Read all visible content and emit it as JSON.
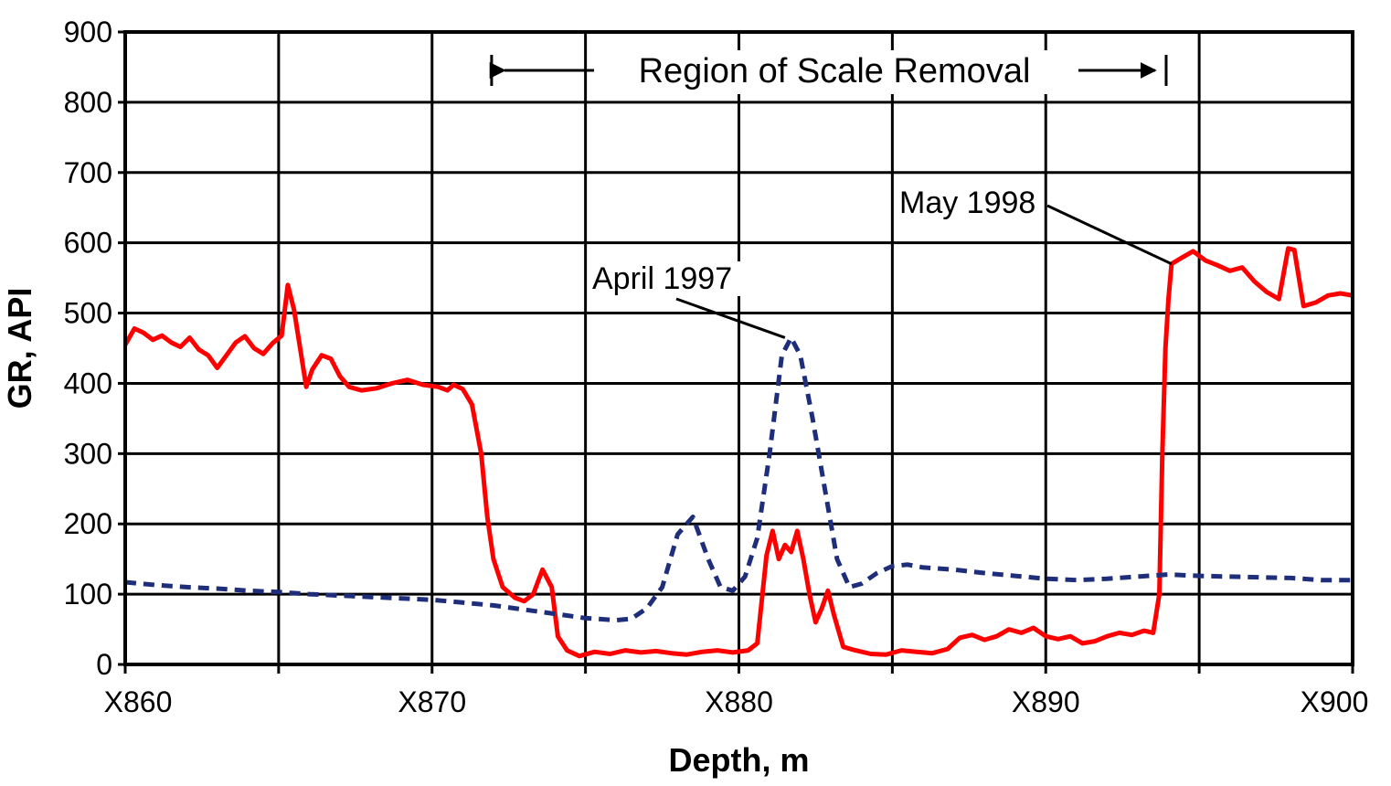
{
  "chart_data": {
    "type": "line",
    "title": "",
    "xlabel": "Depth, m",
    "ylabel": "GR, API",
    "xlim": [
      860,
      900
    ],
    "ylim": [
      0,
      900
    ],
    "grid": true,
    "x_ticks": [
      860,
      865,
      870,
      875,
      880,
      885,
      890,
      895,
      900
    ],
    "x_tick_labels": [
      {
        "value": 860,
        "label": "X860"
      },
      {
        "value": 870,
        "label": "X870"
      },
      {
        "value": 880,
        "label": "X880"
      },
      {
        "value": 890,
        "label": "X890"
      },
      {
        "value": 900,
        "label": "X900"
      }
    ],
    "y_ticks": [
      0,
      100,
      200,
      300,
      400,
      500,
      600,
      700,
      800,
      900
    ],
    "region": {
      "label": "Region of Scale Removal",
      "x_start": 872,
      "x_end": 894.4
    },
    "annotations": [
      {
        "text": "April 1997",
        "series": "April 1997",
        "point_x": 881.5,
        "point_y": 465
      },
      {
        "text": "May 1998",
        "series": "May 1998",
        "point_x": 894.1,
        "point_y": 570
      }
    ],
    "series": [
      {
        "name": "May 1998",
        "color": "#ff0000",
        "style": "solid",
        "points": [
          [
            860,
            455
          ],
          [
            860.3,
            478
          ],
          [
            860.6,
            472
          ],
          [
            860.9,
            462
          ],
          [
            861.2,
            468
          ],
          [
            861.5,
            458
          ],
          [
            861.8,
            452
          ],
          [
            862.1,
            465
          ],
          [
            862.4,
            448
          ],
          [
            862.7,
            440
          ],
          [
            863,
            422
          ],
          [
            863.3,
            440
          ],
          [
            863.6,
            458
          ],
          [
            863.9,
            467
          ],
          [
            864.2,
            450
          ],
          [
            864.5,
            442
          ],
          [
            864.8,
            457
          ],
          [
            865.1,
            468
          ],
          [
            865.3,
            540
          ],
          [
            865.5,
            505
          ],
          [
            865.7,
            450
          ],
          [
            865.9,
            395
          ],
          [
            866.1,
            420
          ],
          [
            866.4,
            440
          ],
          [
            866.7,
            435
          ],
          [
            867,
            410
          ],
          [
            867.3,
            395
          ],
          [
            867.7,
            390
          ],
          [
            868.2,
            393
          ],
          [
            868.7,
            400
          ],
          [
            869.2,
            405
          ],
          [
            869.7,
            398
          ],
          [
            870.2,
            395
          ],
          [
            870.5,
            390
          ],
          [
            870.7,
            398
          ],
          [
            871,
            392
          ],
          [
            871.3,
            370
          ],
          [
            871.6,
            300
          ],
          [
            871.8,
            210
          ],
          [
            872,
            150
          ],
          [
            872.3,
            110
          ],
          [
            872.7,
            95
          ],
          [
            873,
            90
          ],
          [
            873.3,
            100
          ],
          [
            873.6,
            135
          ],
          [
            873.9,
            110
          ],
          [
            874.1,
            40
          ],
          [
            874.4,
            20
          ],
          [
            874.8,
            12
          ],
          [
            875.3,
            18
          ],
          [
            875.8,
            15
          ],
          [
            876.3,
            20
          ],
          [
            876.8,
            17
          ],
          [
            877.3,
            19
          ],
          [
            877.8,
            16
          ],
          [
            878.3,
            14
          ],
          [
            878.8,
            18
          ],
          [
            879.3,
            20
          ],
          [
            879.8,
            17
          ],
          [
            880.3,
            20
          ],
          [
            880.6,
            30
          ],
          [
            880.9,
            155
          ],
          [
            881.1,
            190
          ],
          [
            881.3,
            150
          ],
          [
            881.5,
            170
          ],
          [
            881.7,
            160
          ],
          [
            881.9,
            190
          ],
          [
            882.1,
            150
          ],
          [
            882.3,
            100
          ],
          [
            882.5,
            60
          ],
          [
            882.7,
            80
          ],
          [
            882.9,
            105
          ],
          [
            883.1,
            70
          ],
          [
            883.4,
            25
          ],
          [
            883.8,
            20
          ],
          [
            884.3,
            15
          ],
          [
            884.8,
            14
          ],
          [
            885.3,
            20
          ],
          [
            885.8,
            18
          ],
          [
            886.3,
            16
          ],
          [
            886.8,
            22
          ],
          [
            887.2,
            38
          ],
          [
            887.6,
            42
          ],
          [
            888,
            35
          ],
          [
            888.4,
            40
          ],
          [
            888.8,
            50
          ],
          [
            889.2,
            45
          ],
          [
            889.6,
            52
          ],
          [
            890,
            40
          ],
          [
            890.4,
            36
          ],
          [
            890.8,
            40
          ],
          [
            891.2,
            30
          ],
          [
            891.6,
            33
          ],
          [
            892,
            40
          ],
          [
            892.4,
            45
          ],
          [
            892.8,
            42
          ],
          [
            893.2,
            48
          ],
          [
            893.5,
            45
          ],
          [
            893.7,
            100
          ],
          [
            893.8,
            300
          ],
          [
            893.9,
            450
          ],
          [
            894,
            520
          ],
          [
            894.1,
            570
          ],
          [
            894.4,
            578
          ],
          [
            894.8,
            588
          ],
          [
            895.2,
            575
          ],
          [
            895.6,
            568
          ],
          [
            896,
            560
          ],
          [
            896.4,
            565
          ],
          [
            896.8,
            545
          ],
          [
            897.2,
            530
          ],
          [
            897.6,
            520
          ],
          [
            897.9,
            592
          ],
          [
            898.1,
            590
          ],
          [
            898.4,
            510
          ],
          [
            898.8,
            515
          ],
          [
            899.2,
            525
          ],
          [
            899.6,
            528
          ],
          [
            900,
            525
          ]
        ]
      },
      {
        "name": "April 1997",
        "color": "#1f2e7a",
        "style": "dashed",
        "points": [
          [
            860,
            117
          ],
          [
            861,
            113
          ],
          [
            862,
            110
          ],
          [
            863,
            108
          ],
          [
            864,
            105
          ],
          [
            865,
            103
          ],
          [
            866,
            100
          ],
          [
            867,
            98
          ],
          [
            868,
            96
          ],
          [
            869,
            94
          ],
          [
            870,
            92
          ],
          [
            871,
            88
          ],
          [
            872,
            84
          ],
          [
            873,
            78
          ],
          [
            874,
            72
          ],
          [
            875,
            66
          ],
          [
            876,
            63
          ],
          [
            876.5,
            65
          ],
          [
            877,
            80
          ],
          [
            877.5,
            110
          ],
          [
            878,
            185
          ],
          [
            878.5,
            210
          ],
          [
            879,
            150
          ],
          [
            879.4,
            110
          ],
          [
            879.8,
            105
          ],
          [
            880.2,
            125
          ],
          [
            880.6,
            180
          ],
          [
            881,
            300
          ],
          [
            881.4,
            440
          ],
          [
            881.7,
            465
          ],
          [
            882,
            440
          ],
          [
            882.4,
            350
          ],
          [
            882.8,
            250
          ],
          [
            883.2,
            150
          ],
          [
            883.6,
            110
          ],
          [
            884,
            115
          ],
          [
            884.5,
            130
          ],
          [
            885,
            140
          ],
          [
            885.5,
            142
          ],
          [
            886,
            138
          ],
          [
            887,
            135
          ],
          [
            888,
            130
          ],
          [
            889,
            126
          ],
          [
            890,
            122
          ],
          [
            891,
            120
          ],
          [
            892,
            122
          ],
          [
            893,
            125
          ],
          [
            894,
            128
          ],
          [
            895,
            126
          ],
          [
            896,
            125
          ],
          [
            897,
            124
          ],
          [
            898,
            123
          ],
          [
            899,
            120
          ],
          [
            900,
            120
          ]
        ]
      }
    ]
  }
}
